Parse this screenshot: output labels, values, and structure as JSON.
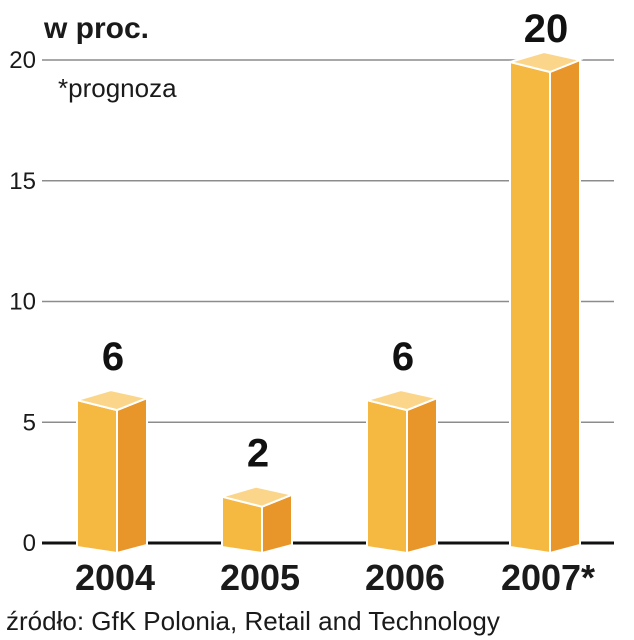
{
  "chart_data": {
    "type": "bar",
    "unit_label": "w proc.",
    "note": "*prognoza",
    "categories": [
      "2004",
      "2005",
      "2006",
      "2007*"
    ],
    "values": [
      6,
      2,
      6,
      20
    ],
    "value_labels": [
      "6",
      "2",
      "6",
      "20"
    ],
    "highlight_index": 3,
    "yticks": [
      "0",
      "5",
      "10",
      "15",
      "20"
    ],
    "ylim": [
      0,
      20
    ],
    "grid": true,
    "source": "źródło: GfK Polonia, Retail and Technology"
  },
  "colors": {
    "bar_front": "#f5b942",
    "bar_side": "#e8962a",
    "bar_top": "#fbd68a",
    "bar_edge": "#ffffff",
    "grid": "#8c8c8c",
    "highlight_label": "#c8102e",
    "text": "#111111"
  }
}
